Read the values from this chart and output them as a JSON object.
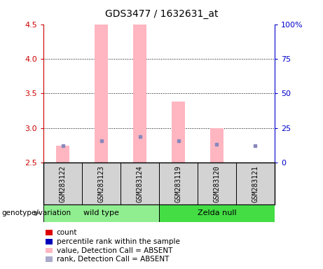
{
  "title": "GDS3477 / 1632631_at",
  "samples": [
    "GSM283122",
    "GSM283123",
    "GSM283124",
    "GSM283119",
    "GSM283120",
    "GSM283121"
  ],
  "ylim_left": [
    2.5,
    4.5
  ],
  "ylim_right": [
    0,
    100
  ],
  "yticks_left": [
    2.5,
    3.0,
    3.5,
    4.0,
    4.5
  ],
  "yticks_right": [
    0,
    25,
    50,
    75,
    100
  ],
  "ytick_labels_right": [
    "0",
    "25",
    "50",
    "75",
    "100%"
  ],
  "bar_bottom": 2.5,
  "pink_bars": {
    "GSM283122": 2.75,
    "GSM283123": 4.5,
    "GSM283124": 4.5,
    "GSM283119": 3.38,
    "GSM283120": 3.0,
    "GSM283121": 2.5
  },
  "blue_dots": {
    "GSM283122": 2.75,
    "GSM283123": 2.82,
    "GSM283124": 2.88,
    "GSM283119": 2.82,
    "GSM283120": 2.77,
    "GSM283121": 2.75
  },
  "pink_color": "#FFB6C1",
  "blue_color": "#8888BB",
  "bar_width": 0.35,
  "left_yaxis_color": "#CC0000",
  "right_yaxis_color": "#0000CC",
  "grid_lines": [
    3.0,
    3.5,
    4.0
  ],
  "wt_color": "#90EE90",
  "zn_color": "#44DD44",
  "sample_box_color": "#D3D3D3",
  "legend_items": [
    {
      "label": "count",
      "color": "#DD0000"
    },
    {
      "label": "percentile rank within the sample",
      "color": "#0000BB"
    },
    {
      "label": "value, Detection Call = ABSENT",
      "color": "#FFB6C1"
    },
    {
      "label": "rank, Detection Call = ABSENT",
      "color": "#AAAACC"
    }
  ],
  "genotype_label": "genotype/variation",
  "wt_label": "wild type",
  "zn_label": "Zelda null"
}
